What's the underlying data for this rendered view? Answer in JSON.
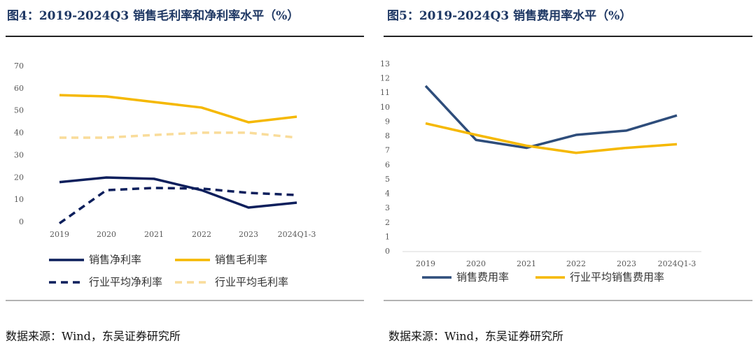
{
  "chart_data": [
    {
      "type": "line",
      "title": "图4：2019-2024Q3  销售毛利率和净利率水平（%）",
      "categories": [
        "2019",
        "2020",
        "2021",
        "2022",
        "2023",
        "2024Q1-3"
      ],
      "series": [
        {
          "name": "销售净利率",
          "color": "#0d1f5c",
          "style": "solid",
          "values": [
            18,
            20.1,
            19.5,
            14.4,
            6.6,
            8.8
          ]
        },
        {
          "name": "销售毛利率",
          "color": "#f5b800",
          "style": "solid",
          "values": [
            57.1,
            56.5,
            54,
            51.5,
            44.9,
            47.4
          ]
        },
        {
          "name": "行业平均净利率",
          "color": "#0d1f5c",
          "style": "dashed",
          "values": [
            -0.5,
            14.4,
            15.4,
            15.1,
            13.2,
            12.2
          ]
        },
        {
          "name": "行业平均毛利率",
          "color": "#f9dc9a",
          "style": "dashed",
          "values": [
            38,
            38,
            39.2,
            40.2,
            40.2,
            38
          ]
        }
      ],
      "ylim": [
        0,
        70
      ],
      "yticks": [
        0,
        10,
        20,
        30,
        40,
        50,
        60,
        70
      ],
      "grid": false,
      "source": "数据来源：Wind，东吴证券研究所"
    },
    {
      "type": "line",
      "title": "图5：2019-2024Q3 销售费用率水平（%）",
      "categories": [
        "2019",
        "2020",
        "2021",
        "2022",
        "2023",
        "2024Q1-3"
      ],
      "series": [
        {
          "name": "销售费用率",
          "color": "#2e4d7b",
          "style": "solid",
          "values": [
            11.5,
            7.75,
            7.2,
            8.1,
            8.4,
            9.45
          ]
        },
        {
          "name": "行业平均销售费用率",
          "color": "#f5b800",
          "style": "solid",
          "values": [
            8.9,
            8.1,
            7.35,
            6.85,
            7.2,
            7.45
          ]
        }
      ],
      "ylim": [
        0,
        13
      ],
      "yticks": [
        0,
        1,
        2,
        3,
        4,
        5,
        6,
        7,
        8,
        9,
        10,
        11,
        12,
        13
      ],
      "grid": false,
      "source": "数据来源：Wind，东吴证券研究所"
    }
  ]
}
